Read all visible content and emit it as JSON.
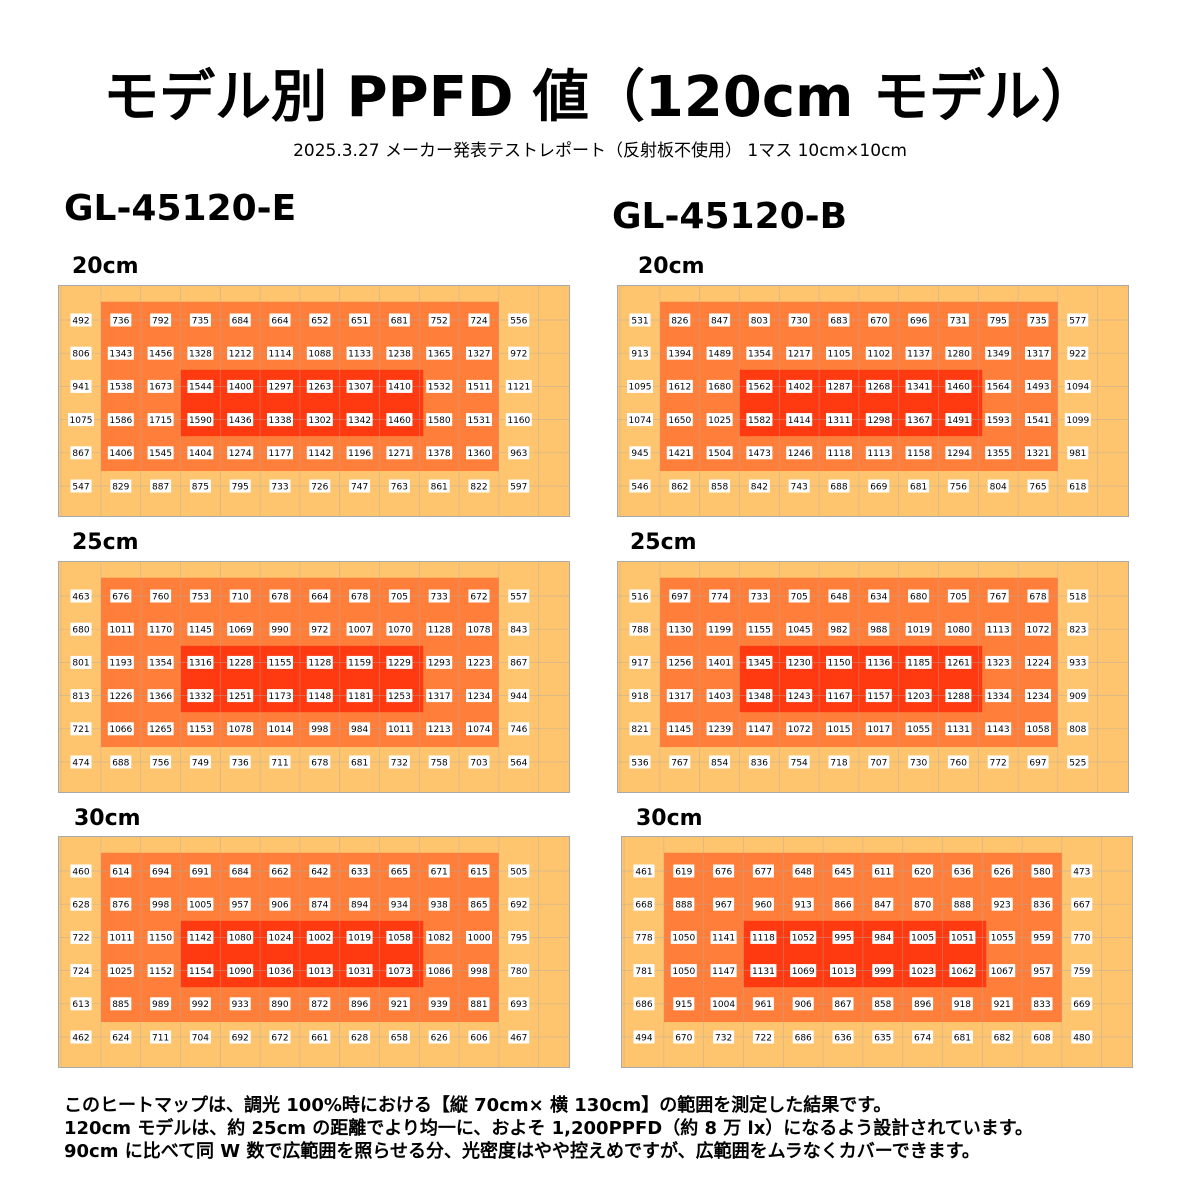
{
  "header": {
    "title": "モデル別 PPFD 値（120cm モデル）",
    "subtitle": "2025.3.27 メーカー発表テストレポート（反射板不使用） 1マス 10cm×10cm"
  },
  "colors": {
    "outer": "#ffc56e",
    "middle": "#ff7f3a",
    "inner": "#ff3a10",
    "grid": "#a9a9a9",
    "label_bg": "#ffffff"
  },
  "chart_data": [
    {
      "type": "heatmap",
      "model": "GL-45120-E",
      "distance": "20cm",
      "values": [
        [
          492,
          736,
          792,
          735,
          684,
          664,
          652,
          651,
          681,
          752,
          724,
          556
        ],
        [
          806,
          1343,
          1456,
          1328,
          1212,
          1114,
          1088,
          1133,
          1238,
          1365,
          1327,
          972
        ],
        [
          941,
          1538,
          1673,
          1544,
          1400,
          1297,
          1263,
          1307,
          1410,
          1532,
          1511,
          1121
        ],
        [
          1075,
          1586,
          1715,
          1590,
          1436,
          1338,
          1302,
          1342,
          1460,
          1580,
          1531,
          1160
        ],
        [
          867,
          1406,
          1545,
          1404,
          1274,
          1177,
          1142,
          1196,
          1271,
          1378,
          1360,
          963
        ],
        [
          547,
          829,
          887,
          875,
          795,
          733,
          726,
          747,
          763,
          861,
          822,
          597
        ]
      ]
    },
    {
      "type": "heatmap",
      "model": "GL-45120-B",
      "distance": "20cm",
      "values": [
        [
          531,
          826,
          847,
          803,
          730,
          683,
          670,
          696,
          731,
          795,
          735,
          577
        ],
        [
          913,
          1394,
          1489,
          1354,
          1217,
          1105,
          1102,
          1137,
          1280,
          1349,
          1317,
          922
        ],
        [
          1095,
          1612,
          1680,
          1562,
          1402,
          1287,
          1268,
          1341,
          1460,
          1564,
          1493,
          1094
        ],
        [
          1074,
          1650,
          1025,
          1582,
          1414,
          1311,
          1298,
          1367,
          1491,
          1593,
          1541,
          1099
        ],
        [
          945,
          1421,
          1504,
          1473,
          1246,
          1118,
          1113,
          1158,
          1294,
          1355,
          1321,
          981
        ],
        [
          546,
          862,
          858,
          842,
          743,
          688,
          669,
          681,
          756,
          804,
          765,
          618
        ]
      ]
    },
    {
      "type": "heatmap",
      "model": "GL-45120-E",
      "distance": "25cm",
      "values": [
        [
          463,
          676,
          760,
          753,
          710,
          678,
          664,
          678,
          705,
          733,
          672,
          557
        ],
        [
          680,
          1011,
          1170,
          1145,
          1069,
          990,
          972,
          1007,
          1070,
          1128,
          1078,
          843
        ],
        [
          801,
          1193,
          1354,
          1316,
          1228,
          1155,
          1128,
          1159,
          1229,
          1293,
          1223,
          867
        ],
        [
          813,
          1226,
          1366,
          1332,
          1251,
          1173,
          1148,
          1181,
          1253,
          1317,
          1234,
          944
        ],
        [
          721,
          1066,
          1265,
          1153,
          1078,
          1014,
          998,
          984,
          1011,
          1213,
          1074,
          746
        ],
        [
          474,
          688,
          756,
          749,
          736,
          711,
          678,
          681,
          732,
          758,
          703,
          564
        ]
      ]
    },
    {
      "type": "heatmap",
      "model": "GL-45120-B",
      "distance": "25cm",
      "values": [
        [
          516,
          697,
          774,
          733,
          705,
          648,
          634,
          680,
          705,
          767,
          678,
          518
        ],
        [
          788,
          1130,
          1199,
          1155,
          1045,
          982,
          988,
          1019,
          1080,
          1113,
          1072,
          823
        ],
        [
          917,
          1256,
          1401,
          1345,
          1230,
          1150,
          1136,
          1185,
          1261,
          1323,
          1224,
          933
        ],
        [
          918,
          1317,
          1403,
          1348,
          1243,
          1167,
          1157,
          1203,
          1288,
          1334,
          1234,
          909
        ],
        [
          821,
          1145,
          1239,
          1147,
          1072,
          1015,
          1017,
          1055,
          1131,
          1143,
          1058,
          808
        ],
        [
          536,
          767,
          854,
          836,
          754,
          718,
          707,
          730,
          760,
          772,
          697,
          525
        ]
      ]
    },
    {
      "type": "heatmap",
      "model": "GL-45120-E",
      "distance": "30cm",
      "values": [
        [
          460,
          614,
          694,
          691,
          684,
          662,
          642,
          633,
          665,
          671,
          615,
          505
        ],
        [
          628,
          876,
          998,
          1005,
          957,
          906,
          874,
          894,
          934,
          938,
          865,
          692
        ],
        [
          722,
          1011,
          1150,
          1142,
          1080,
          1024,
          1002,
          1019,
          1058,
          1082,
          1000,
          795
        ],
        [
          724,
          1025,
          1152,
          1154,
          1090,
          1036,
          1013,
          1031,
          1073,
          1086,
          998,
          780
        ],
        [
          613,
          885,
          989,
          992,
          933,
          890,
          872,
          896,
          921,
          939,
          881,
          693
        ],
        [
          462,
          624,
          711,
          704,
          692,
          672,
          661,
          628,
          658,
          626,
          606,
          467
        ]
      ]
    },
    {
      "type": "heatmap",
      "model": "GL-45120-B",
      "distance": "30cm",
      "values": [
        [
          461,
          619,
          676,
          677,
          648,
          645,
          611,
          620,
          636,
          626,
          580,
          473
        ],
        [
          668,
          888,
          967,
          960,
          913,
          866,
          847,
          870,
          888,
          923,
          836,
          667
        ],
        [
          778,
          1050,
          1141,
          1118,
          1052,
          995,
          984,
          1005,
          1051,
          1055,
          959,
          770
        ],
        [
          781,
          1050,
          1147,
          1131,
          1069,
          1013,
          999,
          1023,
          1062,
          1067,
          957,
          759
        ],
        [
          686,
          915,
          1004,
          961,
          906,
          867,
          858,
          896,
          918,
          921,
          833,
          669
        ],
        [
          494,
          670,
          732,
          722,
          686,
          636,
          635,
          674,
          681,
          682,
          608,
          480
        ]
      ]
    }
  ],
  "caption": {
    "line1": "このヒートマップは、調光 100%時における【縦 70cm× 横 130cm】の範囲を測定した結果です。",
    "line2": "120cm モデルは、約 25cm の距離でより均一に、およそ 1,200PPFD（約 8 万 lx）になるよう設計されています。",
    "line3": "90cm に比べて同 W 数で広範囲を照らせる分、光密度はやや控えめですが、広範囲をムラなくカバーできます。"
  }
}
